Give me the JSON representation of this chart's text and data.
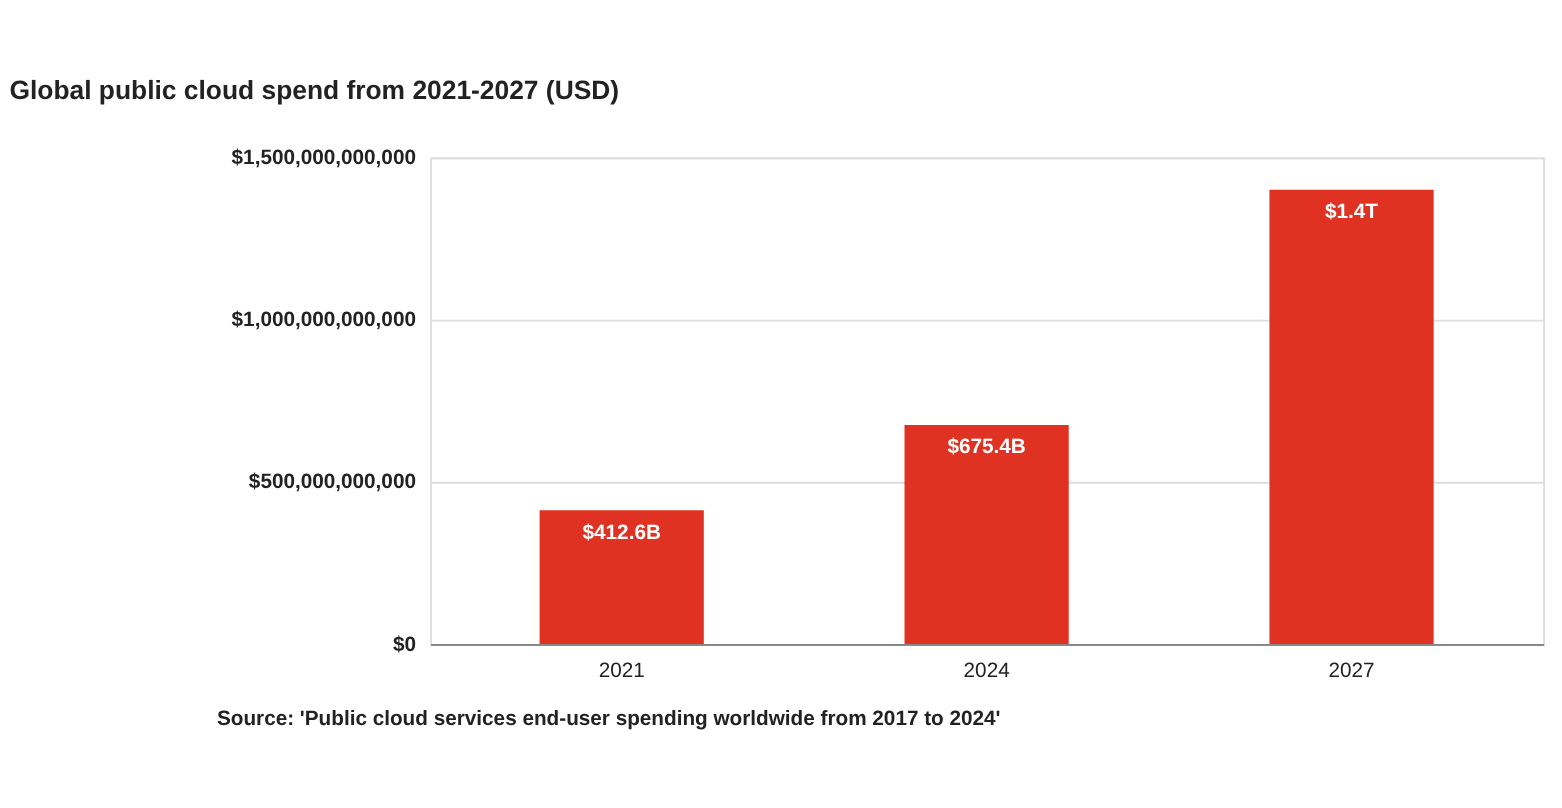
{
  "chart_data": {
    "type": "bar",
    "title": "Global public cloud spend from 2021-2027 (USD)",
    "categories": [
      "2021",
      "2024",
      "2027"
    ],
    "values": [
      412600000000,
      675400000000,
      1400000000000
    ],
    "value_labels": [
      "$412.6B",
      "$675.4B",
      "$1.4T"
    ],
    "color": "#e03222",
    "ylim": [
      0,
      1500000000000
    ],
    "yticks": [
      {
        "value": 0,
        "label": "$0"
      },
      {
        "value": 500000000000,
        "label": "$500,000,000,000"
      },
      {
        "value": 1000000000000,
        "label": "$1,000,000,000,000"
      },
      {
        "value": 1500000000000,
        "label": "$1,500,000,000,000"
      }
    ],
    "grid": "y",
    "annotations": [
      "Source: 'Public cloud services end-user spending worldwide from 2017 to 2024'"
    ]
  }
}
